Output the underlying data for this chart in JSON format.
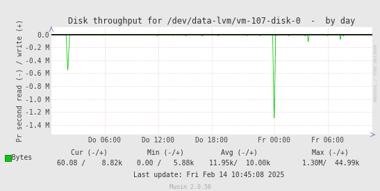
{
  "title": "Disk throughput for /dev/data-lvm/vm-107-disk-0  -  by day",
  "ylabel": "Pr second read (-) / write (+)",
  "bg_color": "#e8e8e8",
  "plot_bg_color": "#ffffff",
  "grid_color_h": "#ddbbbb",
  "grid_color_v": "#ddbbbb",
  "line_color": "#00cc00",
  "x_tick_labels": [
    "Do 06:00",
    "Do 12:00",
    "Do 18:00",
    "Fr 00:00",
    "Fr 06:00"
  ],
  "x_tick_positions": [
    0.166,
    0.333,
    0.5,
    0.694,
    0.861
  ],
  "ylim_min": -1550000,
  "ylim_max": 120000,
  "y_ticks": [
    0,
    -200000,
    -400000,
    -600000,
    -800000,
    -1000000,
    -1200000,
    -1400000
  ],
  "y_tick_labels": [
    "0.0",
    "-0.2 M",
    "-0.4 M",
    "-0.6 M",
    "-0.8 M",
    "-1.0 M",
    "-1.2 M",
    "-1.4 M"
  ],
  "legend_label": "Bytes",
  "cur_neg": "60.08",
  "cur_pos": "8.82k",
  "min_neg": "0.00",
  "min_pos": "5.88k",
  "avg_neg": "11.95k",
  "avg_pos": "10.00k",
  "max_neg": "1.30M",
  "max_pos": "44.99k",
  "last_update": "Last update: Fri Feb 14 10:45:08 2025",
  "munin_version": "Munin 2.0.56",
  "rrdtool_label": "RRDTOOL / TOBI OETIKER"
}
